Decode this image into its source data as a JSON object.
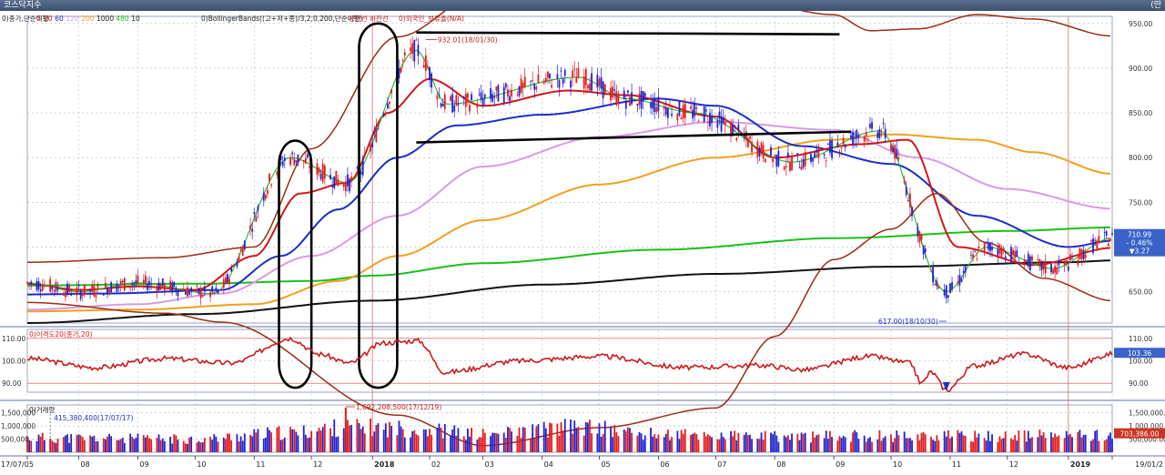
{
  "window": {
    "title": "코스닥지수",
    "corner_label": "(만"
  },
  "colors": {
    "up": "#e31b1b",
    "down": "#2222cc",
    "ma5": "#22bb22",
    "ma20": "#d01818",
    "ma60": "#1c2cc8",
    "ma120": "#d89ae6",
    "ma200": "#f0a020",
    "ma1000": "#19c019",
    "ma480": "#111111",
    "bollinger": "#9c2c10",
    "grid": "#aab4ce",
    "vline": "#e07a7a",
    "annot": "#000000",
    "badge": "#3a62c8",
    "volbadge": "#cc3322"
  },
  "chart_data": [
    {
      "id": "price",
      "type": "candlestick",
      "legend": {
        "prefix": "0)종가,단순이평",
        "periods": [
          {
            "label": "5",
            "color": "#e31b1b"
          },
          {
            "label": "20",
            "color": "#c01818"
          },
          {
            "label": "60",
            "color": "#1c2cc8"
          },
          {
            "label": "120",
            "color": "#d89ae6"
          },
          {
            "label": "200",
            "color": "#f0a020"
          },
          {
            "label": "1000",
            "color": "#1a1a1a"
          },
          {
            "label": "480",
            "color": "#19c019"
          },
          {
            "label": "10",
            "color": "#1a1a1a"
          }
        ],
        "bollinger": "0)BollingerBands((고+저+종)/3,2,0,200,단순이평)",
        "limit": "상한선 하한선",
        "foreign": "0)외국인_보유율(N/A)"
      },
      "y_ticks": [
        "650.00",
        "700.00",
        "750.00",
        "800.00",
        "850.00",
        "900.00",
        "950.00"
      ],
      "ylim": [
        615,
        958
      ],
      "current": {
        "price": "710.99",
        "change": "- 0.46%",
        "diff": "▼3.27"
      },
      "annotations": [
        {
          "label": "932.01(18/01/30)",
          "date": "2018-01-30",
          "value": 932.01
        },
        {
          "label": "617.00(18/10/30)",
          "date": "2018-10-30",
          "value": 617.0
        }
      ],
      "trendlines": [
        {
          "from": [
            "2018-01-25",
            940
          ],
          "to": [
            "2018-09-04",
            938
          ]
        },
        {
          "from": [
            "2018-01-25",
            817
          ],
          "to": [
            "2018-09-10",
            829
          ]
        }
      ],
      "highlight_ellipses": [
        {
          "from_date": "2017-11-14",
          "to_date": "2017-12-01",
          "ymin": 620,
          "ymax": 819
        },
        {
          "from_date": "2017-12-26",
          "to_date": "2018-01-15",
          "ymin": 620,
          "ymax": 950
        }
      ],
      "ma_lines": [
        {
          "name": "ma480",
          "color": "#111111",
          "points": [
            [
              "2017-07-05",
              615
            ],
            [
              "2017-10-02",
              625
            ],
            [
              "2018-01-02",
              640
            ],
            [
              "2018-04-02",
              658
            ],
            [
              "2018-07-02",
              670
            ],
            [
              "2018-10-01",
              678
            ],
            [
              "2019-01-02",
              683
            ],
            [
              "2019-01-25",
              685
            ]
          ]
        },
        {
          "name": "ma1000",
          "color": "#19c019",
          "points": [
            [
              "2017-07-05",
              657
            ],
            [
              "2017-10-02",
              659
            ],
            [
              "2017-12-01",
              662
            ],
            [
              "2018-01-02",
              668
            ],
            [
              "2018-03-02",
              682
            ],
            [
              "2018-06-01",
              697
            ],
            [
              "2018-09-03",
              710
            ],
            [
              "2018-12-03",
              718
            ],
            [
              "2019-01-25",
              722
            ]
          ]
        },
        {
          "name": "ma200",
          "color": "#f0a020",
          "points": [
            [
              "2017-07-05",
              628
            ],
            [
              "2017-09-01",
              630
            ],
            [
              "2017-11-01",
              636
            ],
            [
              "2017-12-15",
              662
            ],
            [
              "2018-01-15",
              690
            ],
            [
              "2018-03-01",
              730
            ],
            [
              "2018-05-01",
              770
            ],
            [
              "2018-07-01",
              800
            ],
            [
              "2018-09-01",
              820
            ],
            [
              "2018-10-01",
              826
            ],
            [
              "2018-11-15",
              820
            ],
            [
              "2018-12-15",
              806
            ],
            [
              "2019-01-25",
              782
            ]
          ]
        },
        {
          "name": "ma120",
          "color": "#d89ae6",
          "points": [
            [
              "2017-07-05",
              630
            ],
            [
              "2017-09-01",
              636
            ],
            [
              "2017-10-15",
              648
            ],
            [
              "2017-12-01",
              690
            ],
            [
              "2018-01-15",
              735
            ],
            [
              "2018-03-01",
              790
            ],
            [
              "2018-05-01",
              823
            ],
            [
              "2018-07-01",
              840
            ],
            [
              "2018-09-01",
              831
            ],
            [
              "2018-10-15",
              800
            ],
            [
              "2018-12-01",
              765
            ],
            [
              "2019-01-25",
              743
            ]
          ]
        },
        {
          "name": "ma60",
          "color": "#1c2cc8",
          "points": [
            [
              "2017-07-05",
              647
            ],
            [
              "2017-08-15",
              648
            ],
            [
              "2017-10-15",
              652
            ],
            [
              "2017-11-15",
              690
            ],
            [
              "2017-12-15",
              742
            ],
            [
              "2018-01-15",
              800
            ],
            [
              "2018-02-15",
              836
            ],
            [
              "2018-04-01",
              848
            ],
            [
              "2018-06-01",
              866
            ],
            [
              "2018-07-01",
              858
            ],
            [
              "2018-08-15",
              813
            ],
            [
              "2018-10-01",
              793
            ],
            [
              "2018-11-15",
              735
            ],
            [
              "2019-01-02",
              700
            ],
            [
              "2019-01-25",
              707
            ]
          ]
        },
        {
          "name": "ma20",
          "color": "#d01818",
          "points": [
            [
              "2017-07-05",
              659
            ],
            [
              "2017-08-01",
              652
            ],
            [
              "2017-09-01",
              656
            ],
            [
              "2017-10-01",
              652
            ],
            [
              "2017-11-01",
              690
            ],
            [
              "2017-11-25",
              760
            ],
            [
              "2017-12-20",
              772
            ],
            [
              "2018-01-10",
              850
            ],
            [
              "2018-02-01",
              888
            ],
            [
              "2018-03-01",
              858
            ],
            [
              "2018-04-15",
              875
            ],
            [
              "2018-05-15",
              870
            ],
            [
              "2018-07-01",
              846
            ],
            [
              "2018-08-01",
              800
            ],
            [
              "2018-09-15",
              815
            ],
            [
              "2018-10-10",
              820
            ],
            [
              "2018-11-05",
              700
            ],
            [
              "2018-12-15",
              680
            ],
            [
              "2019-01-25",
              699
            ]
          ]
        },
        {
          "name": "ma5",
          "color": "#22bb22",
          "points": [
            [
              "2017-07-05",
              660
            ],
            [
              "2017-08-01",
              650
            ],
            [
              "2017-09-01",
              660
            ],
            [
              "2017-10-10",
              648
            ],
            [
              "2017-11-20",
              800
            ],
            [
              "2017-12-20",
              772
            ],
            [
              "2018-01-25",
              920
            ],
            [
              "2018-02-10",
              860
            ],
            [
              "2018-04-20",
              890
            ],
            [
              "2018-05-15",
              866
            ],
            [
              "2018-06-20",
              850
            ],
            [
              "2018-08-10",
              795
            ],
            [
              "2018-09-25",
              830
            ],
            [
              "2018-10-30",
              650
            ],
            [
              "2018-11-20",
              700
            ],
            [
              "2018-12-25",
              676
            ],
            [
              "2019-01-25",
              710
            ]
          ]
        },
        {
          "name": "bollinger-upper",
          "color": "#9c2c10",
          "points": [
            [
              "2017-07-05",
              683
            ],
            [
              "2017-09-15",
              688
            ],
            [
              "2017-11-01",
              700
            ],
            [
              "2017-12-01",
              810
            ],
            [
              "2018-01-15",
              935
            ],
            [
              "2018-03-01",
              985
            ],
            [
              "2018-05-01",
              1010
            ],
            [
              "2018-07-01",
              985
            ],
            [
              "2018-09-01",
              960
            ],
            [
              "2018-09-20",
              942
            ],
            [
              "2018-10-15",
              944
            ],
            [
              "2018-11-15",
              960
            ],
            [
              "2018-12-15",
              955
            ],
            [
              "2019-01-25",
              936
            ]
          ]
        },
        {
          "name": "bollinger-lower",
          "color": "#9c2c10",
          "points": [
            [
              "2017-07-05",
              638
            ],
            [
              "2017-09-15",
              626
            ],
            [
              "2017-10-15",
              616
            ],
            [
              "2018-01-15",
              512
            ],
            [
              "2018-03-01",
              478
            ],
            [
              "2018-05-01",
              498
            ],
            [
              "2018-07-01",
              520
            ],
            [
              "2018-08-01",
              600
            ],
            [
              "2018-09-01",
              686
            ],
            [
              "2018-10-01",
              720
            ],
            [
              "2018-10-25",
              760
            ],
            [
              "2018-11-20",
              705
            ],
            [
              "2018-12-20",
              665
            ],
            [
              "2019-01-25",
              640
            ]
          ]
        }
      ]
    },
    {
      "id": "disparity",
      "type": "line",
      "legend": "0)이격도20(종가,20)",
      "y_ticks": [
        "90.00",
        "100.00",
        "110.00"
      ],
      "ylim": [
        86,
        114
      ],
      "current": "103.36",
      "points": [
        [
          "2017-07-05",
          101
        ],
        [
          "2017-08-10",
          97
        ],
        [
          "2017-09-15",
          101
        ],
        [
          "2017-10-20",
          99
        ],
        [
          "2017-11-20",
          110
        ],
        [
          "2017-12-05",
          103
        ],
        [
          "2017-12-21",
          99
        ],
        [
          "2018-01-08",
          108
        ],
        [
          "2018-01-26",
          109
        ],
        [
          "2018-02-09",
          95
        ],
        [
          "2018-03-20",
          100
        ],
        [
          "2018-05-01",
          102
        ],
        [
          "2018-06-15",
          97
        ],
        [
          "2018-07-25",
          98
        ],
        [
          "2018-08-16",
          96
        ],
        [
          "2018-09-20",
          102
        ],
        [
          "2018-10-11",
          99
        ],
        [
          "2018-10-17",
          90
        ],
        [
          "2018-10-22",
          95
        ],
        [
          "2018-10-30",
          87
        ],
        [
          "2018-11-14",
          98
        ],
        [
          "2018-12-10",
          103
        ],
        [
          "2019-01-02",
          97
        ],
        [
          "2019-01-25",
          103
        ]
      ]
    },
    {
      "id": "volume",
      "type": "bar",
      "legend": "0)거래량",
      "y_ticks": [
        "500,000.00",
        "1,000,000.00",
        "1,500,000.00"
      ],
      "left_ticks": [
        "1,500,000",
        "1,000,000",
        "500,000"
      ],
      "ylim": [
        0,
        1800000
      ],
      "current": "703,386.00",
      "annotations": [
        {
          "label": "415,380,400(17/07/17)",
          "date": "2017-07-17",
          "value": 415380400
        },
        {
          "label": "1,692,208,500(17/12/19)",
          "date": "2017-12-19",
          "value": 1692208500
        }
      ]
    }
  ],
  "x_axis": {
    "start": "2017-07-05",
    "end": "2019-01-25",
    "labels": [
      {
        "text": "17/07/05",
        "date": "2017-07-05"
      },
      {
        "text": "08",
        "date": "2017-08-01"
      },
      {
        "text": "09",
        "date": "2017-09-01"
      },
      {
        "text": "10",
        "date": "2017-10-01"
      },
      {
        "text": "11",
        "date": "2017-11-01"
      },
      {
        "text": "12",
        "date": "2017-12-01"
      },
      {
        "text": "2018",
        "date": "2018-01-02"
      },
      {
        "text": "02",
        "date": "2018-02-01"
      },
      {
        "text": "03",
        "date": "2018-03-01"
      },
      {
        "text": "04",
        "date": "2018-04-01"
      },
      {
        "text": "05",
        "date": "2018-05-01"
      },
      {
        "text": "06",
        "date": "2018-06-01"
      },
      {
        "text": "07",
        "date": "2018-07-01"
      },
      {
        "text": "08",
        "date": "2018-08-01"
      },
      {
        "text": "09",
        "date": "2018-09-01"
      },
      {
        "text": "10",
        "date": "2018-10-01"
      },
      {
        "text": "11",
        "date": "2018-11-01"
      },
      {
        "text": "12",
        "date": "2018-12-01"
      },
      {
        "text": "2019",
        "date": "2019-01-02"
      },
      {
        "text": "19/01/2",
        "date": "2019-01-25"
      }
    ],
    "vertical_markers": [
      "2018-01-02",
      "2019-01-02"
    ]
  }
}
